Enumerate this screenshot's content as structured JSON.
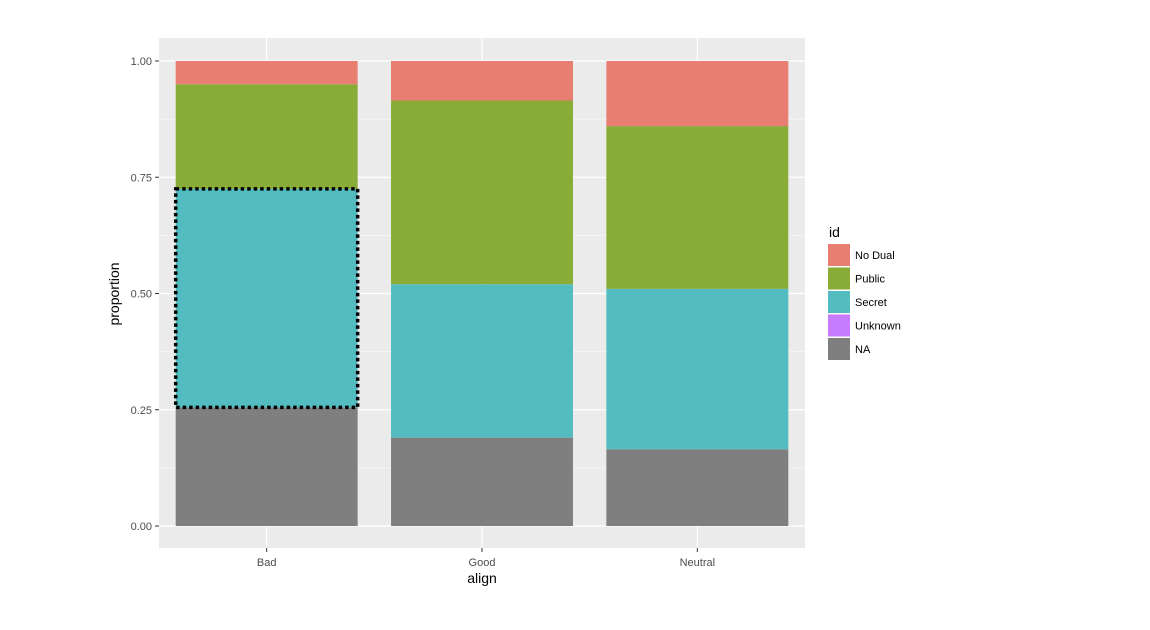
{
  "chart_data": {
    "type": "bar",
    "stacked": true,
    "categories": [
      "Bad",
      "Good",
      "Neutral"
    ],
    "xlabel": "align",
    "ylabel": "proportion",
    "ylim": [
      0,
      1
    ],
    "yticks": [
      "0.00",
      "0.25",
      "0.50",
      "0.75",
      "1.00"
    ],
    "grid": true,
    "legend": {
      "title": "id",
      "placement": "right",
      "entries": [
        "No Dual",
        "Public",
        "Secret",
        "Unknown",
        "NA"
      ]
    },
    "series": [
      {
        "name": "NA",
        "color": "#7f7f7f",
        "values": [
          0.255,
          0.19,
          0.165
        ]
      },
      {
        "name": "Secret",
        "color": "#53bcc1",
        "values": [
          0.47,
          0.33,
          0.345
        ]
      },
      {
        "name": "Unknown",
        "color": "#c77cff",
        "values": [
          0.0,
          0.0,
          0.0
        ]
      },
      {
        "name": "Public",
        "color": "#88ac36",
        "values": [
          0.225,
          0.395,
          0.35
        ]
      },
      {
        "name": "No Dual",
        "color": "#e87e72",
        "values": [
          0.05,
          0.085,
          0.14
        ]
      }
    ],
    "highlight": {
      "category": "Bad",
      "series": "Secret",
      "style": "dotted-outline"
    }
  }
}
